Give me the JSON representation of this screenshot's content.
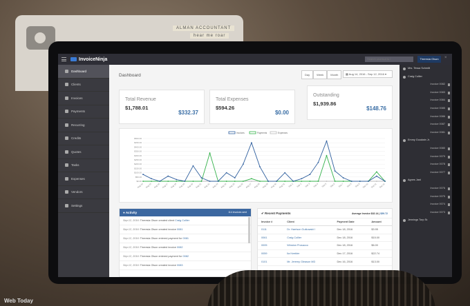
{
  "scene": {
    "stickers": [
      "ALMAN ACCOUNTANT",
      "hear me roar"
    ],
    "corner_text": "Web Today"
  },
  "app": {
    "brand": "InvoiceNinja",
    "search_placeholder": "Search shortcut is /",
    "user": "Theresia Olson"
  },
  "sidebar": {
    "items": [
      "Dashboard",
      "Clients",
      "Invoices",
      "Payments",
      "Recurring",
      "Credits",
      "Quotes",
      "Tasks",
      "Expenses",
      "Vendors",
      "Settings"
    ],
    "active": "Dashboard"
  },
  "header": {
    "title": "Dashboard",
    "range_buttons": [
      "Day",
      "Week",
      "Month"
    ],
    "date_range": "Aug 14, 2016 - Sep 12, 2016"
  },
  "cards": [
    {
      "label": "Total Revenue",
      "amount": "$1,788.01",
      "secondary": "$332.37"
    },
    {
      "label": "Total Expenses",
      "amount": "$594.26",
      "secondary": "$0.00"
    },
    {
      "label": "Outstanding",
      "amount": "$1,939.86",
      "secondary": "$148.76"
    }
  ],
  "chart_data": {
    "type": "line",
    "legend": [
      "Invoices",
      "Payments",
      "Expenses"
    ],
    "colors": [
      "#2f5f9e",
      "#33b14a",
      "#bbbbbb"
    ],
    "y_ticks": [
      "$500.00",
      "$450.00",
      "$400.00",
      "$350.00",
      "$300.00",
      "$250.00",
      "$200.00",
      "$150.00",
      "$100.00",
      "$50.00",
      "$0.00"
    ],
    "ylim": [
      0,
      500
    ],
    "x": [
      "Aug 14",
      "Aug 15",
      "Aug 16",
      "Aug 17",
      "Aug 18",
      "Aug 19",
      "Aug 20",
      "Aug 21",
      "Aug 22",
      "Aug 23",
      "Aug 24",
      "Aug 25",
      "Aug 26",
      "Aug 27",
      "Aug 28",
      "Aug 29",
      "Aug 30",
      "Aug 31",
      "Sep 1",
      "Sep 2",
      "Sep 3",
      "Sep 4",
      "Sep 5",
      "Sep 6",
      "Sep 7",
      "Sep 8",
      "Sep 9",
      "Sep 10",
      "Sep 11",
      "Sep 12"
    ],
    "series": [
      {
        "name": "Invoices",
        "values": [
          80,
          30,
          0,
          60,
          20,
          0,
          180,
          40,
          0,
          0,
          100,
          40,
          200,
          450,
          170,
          0,
          0,
          100,
          0,
          30,
          80,
          220,
          470,
          120,
          40,
          0,
          0,
          0,
          60,
          0
        ]
      },
      {
        "name": "Payments",
        "values": [
          0,
          0,
          0,
          0,
          0,
          0,
          0,
          0,
          330,
          0,
          0,
          0,
          0,
          30,
          0,
          0,
          0,
          0,
          0,
          0,
          0,
          0,
          300,
          0,
          0,
          0,
          0,
          0,
          110,
          0
        ]
      },
      {
        "name": "Expenses",
        "values": [
          0,
          0,
          0,
          0,
          0,
          0,
          0,
          0,
          0,
          0,
          0,
          0,
          0,
          0,
          0,
          0,
          0,
          0,
          0,
          0,
          0,
          0,
          0,
          0,
          0,
          0,
          0,
          0,
          0,
          0
        ]
      }
    ]
  },
  "activity": {
    "title": "Activity",
    "badge": "114 invoices sent",
    "items": [
      {
        "date": "Sep 12, 2016",
        "text": "Theresia Olson created client",
        "link": "Craig Collier"
      },
      {
        "date": "Sep 12, 2016",
        "text": "Theresia Olson created invoice",
        "link": "0081"
      },
      {
        "date": "Sep 12, 2016",
        "text": "Theresia Olson entered payment for",
        "link": "0081"
      },
      {
        "date": "Sep 12, 2016",
        "text": "Theresia Olson created invoice",
        "link": "0082"
      },
      {
        "date": "Sep 12, 2016",
        "text": "Theresia Olson entered payment for",
        "link": "0082"
      },
      {
        "date": "Sep 12, 2016",
        "text": "Theresia Olson created invoice",
        "link": "0083"
      }
    ]
  },
  "payments": {
    "title": "Recent Payments",
    "average_label": "Average Invoice $32.14 |",
    "average_value": "$59.72",
    "columns": [
      "Invoice #",
      "Client",
      "Payment Date",
      "Amount"
    ],
    "rows": [
      [
        "0111",
        "Dr. Harrison Gutkowski I",
        "Dec 18, 2016",
        "$3.95"
      ],
      [
        "0061",
        "Craig Collier",
        "Dec 18, 2016",
        "$15.00"
      ],
      [
        "0005",
        "Winston Prosacco",
        "Dec 18, 2016",
        "$6.00"
      ],
      [
        "0059",
        "Ila Keebler",
        "Dec 17, 2016",
        "$22.74"
      ],
      [
        "0101",
        "Mr. Jeremy Gleason MD",
        "Dec 16, 2016",
        "$13.00"
      ]
    ]
  },
  "right_panel": [
    {
      "type": "client",
      "label": "Mrs. Tessa Schmitt"
    },
    {
      "type": "client",
      "label": "Craig Collier"
    },
    {
      "type": "invoice",
      "label": "Invoice 0082"
    },
    {
      "type": "invoice",
      "label": "Invoice 0083"
    },
    {
      "type": "invoice",
      "label": "Invoice 0084"
    },
    {
      "type": "invoice",
      "label": "Invoice 0085"
    },
    {
      "type": "invoice",
      "label": "Invoice 0086"
    },
    {
      "type": "invoice",
      "label": "Invoice 0087"
    },
    {
      "type": "invoice",
      "label": "Invoice 0081"
    },
    {
      "type": "client",
      "label": "Emmy Goodwin Jr."
    },
    {
      "type": "invoice",
      "label": "Invoice 0080"
    },
    {
      "type": "invoice",
      "label": "Invoice 0079"
    },
    {
      "type": "invoice",
      "label": "Invoice 0078"
    },
    {
      "type": "invoice",
      "label": "Invoice 0077"
    },
    {
      "type": "client",
      "label": "Agnes Jast"
    },
    {
      "type": "invoice",
      "label": "Invoice 0076"
    },
    {
      "type": "invoice",
      "label": "Invoice 0075"
    },
    {
      "type": "invoice",
      "label": "Invoice 0074"
    },
    {
      "type": "invoice",
      "label": "Invoice 0073"
    },
    {
      "type": "client",
      "label": "Jennings Torp Sr."
    }
  ]
}
